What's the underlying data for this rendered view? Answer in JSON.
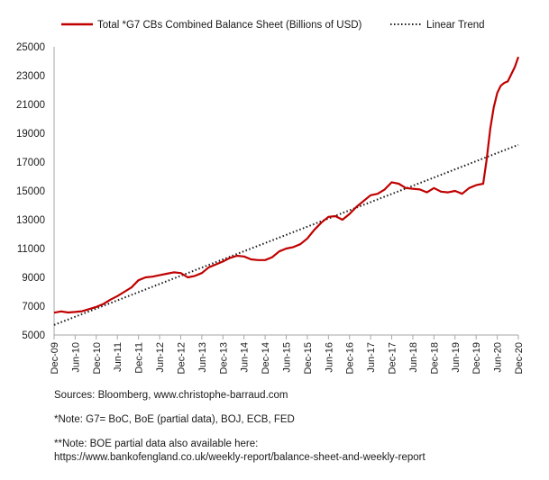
{
  "chart_data": {
    "type": "line",
    "series": [
      {
        "name": "Total *G7 CBs Combined Balance Sheet (Billions of USD)",
        "color": "#c00000",
        "style": "solid",
        "points": [
          [
            "2009-12",
            6550
          ],
          [
            "2010-02",
            6640
          ],
          [
            "2010-04",
            6560
          ],
          [
            "2010-06",
            6600
          ],
          [
            "2010-08",
            6650
          ],
          [
            "2010-10",
            6800
          ],
          [
            "2010-12",
            6950
          ],
          [
            "2011-02",
            7150
          ],
          [
            "2011-04",
            7450
          ],
          [
            "2011-06",
            7700
          ],
          [
            "2011-08",
            8000
          ],
          [
            "2011-10",
            8300
          ],
          [
            "2011-12",
            8800
          ],
          [
            "2012-02",
            9000
          ],
          [
            "2012-04",
            9050
          ],
          [
            "2012-06",
            9150
          ],
          [
            "2012-08",
            9250
          ],
          [
            "2012-10",
            9350
          ],
          [
            "2012-12",
            9300
          ],
          [
            "2013-02",
            9000
          ],
          [
            "2013-04",
            9100
          ],
          [
            "2013-06",
            9300
          ],
          [
            "2013-08",
            9700
          ],
          [
            "2013-10",
            9900
          ],
          [
            "2013-12",
            10100
          ],
          [
            "2014-02",
            10350
          ],
          [
            "2014-04",
            10500
          ],
          [
            "2014-06",
            10450
          ],
          [
            "2014-08",
            10250
          ],
          [
            "2014-10",
            10200
          ],
          [
            "2014-12",
            10200
          ],
          [
            "2015-02",
            10400
          ],
          [
            "2015-04",
            10800
          ],
          [
            "2015-06",
            11000
          ],
          [
            "2015-08",
            11100
          ],
          [
            "2015-10",
            11300
          ],
          [
            "2015-12",
            11700
          ],
          [
            "2016-02",
            12300
          ],
          [
            "2016-04",
            12800
          ],
          [
            "2016-06",
            13200
          ],
          [
            "2016-08",
            13250
          ],
          [
            "2016-10",
            13000
          ],
          [
            "2016-12",
            13400
          ],
          [
            "2017-02",
            13900
          ],
          [
            "2017-04",
            14300
          ],
          [
            "2017-06",
            14700
          ],
          [
            "2017-08",
            14800
          ],
          [
            "2017-10",
            15100
          ],
          [
            "2017-12",
            15600
          ],
          [
            "2018-02",
            15500
          ],
          [
            "2018-04",
            15200
          ],
          [
            "2018-06",
            15150
          ],
          [
            "2018-08",
            15100
          ],
          [
            "2018-10",
            14900
          ],
          [
            "2018-12",
            15200
          ],
          [
            "2019-02",
            14950
          ],
          [
            "2019-04",
            14900
          ],
          [
            "2019-06",
            15000
          ],
          [
            "2019-08",
            14800
          ],
          [
            "2019-10",
            15200
          ],
          [
            "2019-12",
            15400
          ],
          [
            "2020-02",
            15500
          ],
          [
            "2020-03",
            17200
          ],
          [
            "2020-04",
            19300
          ],
          [
            "2020-05",
            20800
          ],
          [
            "2020-06",
            21800
          ],
          [
            "2020-07",
            22300
          ],
          [
            "2020-08",
            22500
          ],
          [
            "2020-09",
            22600
          ],
          [
            "2020-10",
            23100
          ],
          [
            "2020-11",
            23600
          ],
          [
            "2020-12",
            24300
          ]
        ]
      },
      {
        "name": "Linear Trend",
        "color": "#1a1a1a",
        "style": "dotted",
        "points": [
          [
            "2009-12",
            5700
          ],
          [
            "2020-12",
            18200
          ]
        ]
      }
    ],
    "x_tick_labels": [
      "Dec-09",
      "Jun-10",
      "Dec-10",
      "Jun-11",
      "Dec-11",
      "Jun-12",
      "Dec-12",
      "Jun-13",
      "Dec-13",
      "Jun-14",
      "Dec-14",
      "Jun-15",
      "Dec-15",
      "Jun-16",
      "Dec-16",
      "Jun-17",
      "Dec-17",
      "Jun-18",
      "Dec-18",
      "Jun-19",
      "Dec-19",
      "Jun-20",
      "Dec-20"
    ],
    "y_ticks": [
      5000,
      7000,
      9000,
      11000,
      13000,
      15000,
      17000,
      19000,
      21000,
      23000,
      25000
    ],
    "ylim": [
      5000,
      25000
    ],
    "xlim": [
      "2009-12",
      "2020-12"
    ],
    "grid": false,
    "legend_position": "top"
  },
  "notes": {
    "sources": "Sources: Bloomberg, www.christophe-barraud.com",
    "note_1": "*Note: G7= BoC, BoE (partial data), BOJ, ECB, FED",
    "note_2_line1": "**Note: BOE partial data also available here:",
    "note_2_line2": "https://www.bankofengland.co.uk/weekly-report/balance-sheet-and-weekly-report"
  }
}
